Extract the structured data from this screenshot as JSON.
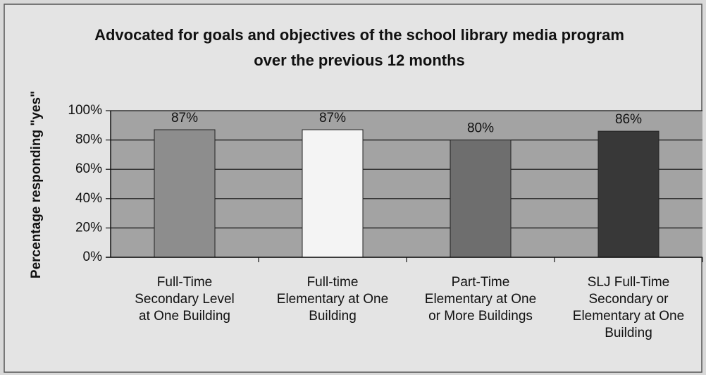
{
  "chart_data": {
    "type": "bar",
    "title": "Advocated for goals and objectives of the school library media program over the previous 12 months",
    "y_label": "Percentage responding \"yes\"",
    "categories": [
      "Full-Time Secondary Level at One Building",
      "Full-time Elementary at One Building",
      "Part-Time Elementary at One or More Buildings",
      "SLJ Full-Time Secondary or Elementary at One Building"
    ],
    "values": [
      87,
      87,
      80,
      86
    ],
    "value_labels": [
      "87%",
      "87%",
      "80%",
      "86%"
    ],
    "colors": [
      "#8d8d8d",
      "#f4f4f4",
      "#6e6e6e",
      "#383838"
    ],
    "ylim": [
      0,
      100
    ],
    "yticks": [
      {
        "value": 0,
        "label": "0%"
      },
      {
        "value": 20,
        "label": "20%"
      },
      {
        "value": 40,
        "label": "40%"
      },
      {
        "value": 60,
        "label": "60%"
      },
      {
        "value": 80,
        "label": "80%"
      },
      {
        "value": 100,
        "label": "100%"
      }
    ],
    "grid": true
  }
}
